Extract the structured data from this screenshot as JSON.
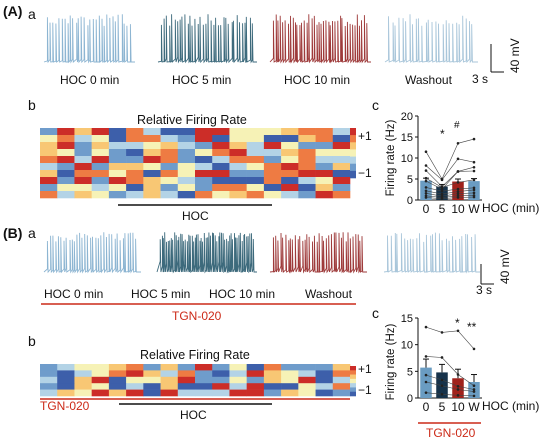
{
  "panels": {
    "A": {
      "label": "(A)",
      "a": {
        "label": "a",
        "trace_labels": [
          "HOC 0 min",
          "HOC 5 min",
          "HOC 10 min",
          "Washout"
        ],
        "trace_colors": [
          "#8db5d2",
          "#3d6a7c",
          "#9e3a3a",
          "#a9c6da"
        ],
        "scale_time": "3 s",
        "scale_voltage": "40 mV"
      },
      "b": {
        "label": "b",
        "heatmap_title": "Relative Firing Rate",
        "colorbar_ticks": [
          "+1",
          "−1"
        ],
        "treatment_label": "HOC"
      },
      "c": {
        "label": "c",
        "ylabel": "Firing rate (Hz)",
        "xlabel": "HOC (min)",
        "marks": [
          "*",
          "#"
        ]
      }
    },
    "B": {
      "label": "(B)",
      "a": {
        "label": "a",
        "trace_labels": [
          "HOC 0 min",
          "HOC 5 min",
          "HOC 10 min",
          "Washout"
        ],
        "trace_colors": [
          "#8db5d2",
          "#3d6a7c",
          "#9e3a3a",
          "#a9c6da"
        ],
        "condition_label": "TGN-020",
        "scale_time": "3 s",
        "scale_voltage": "40 mV"
      },
      "b": {
        "label": "b",
        "heatmap_title": "Relative Firing Rate",
        "colorbar_ticks": [
          "+1",
          "−1"
        ],
        "condition_label": "TGN-020",
        "treatment_label": "HOC"
      },
      "c": {
        "label": "c",
        "ylabel": "Firing rate (Hz)",
        "xlabel": "HOC (min)",
        "marks": [
          "*",
          "**"
        ],
        "condition_label": "TGN-020"
      }
    }
  },
  "colors": {
    "accent_red": "#cc2a18",
    "bar_0": "#6a9cc2",
    "bar_5": "#16324a",
    "bar_10": "#a0221c",
    "bar_w": "#6a9cc2"
  },
  "chart_data": [
    {
      "type": "bar",
      "panel": "A-c",
      "categories": [
        "0",
        "5",
        "10",
        "W"
      ],
      "values": [
        4.6,
        3.2,
        4.4,
        4.5
      ],
      "errors": [
        0.6,
        0.5,
        0.6,
        0.6
      ],
      "xlabel": "HOC (min)",
      "ylabel": "Firing rate (Hz)",
      "ylim": [
        0,
        20
      ],
      "yticks": [
        0,
        5,
        10,
        15,
        20
      ],
      "subjects": [
        [
          4.5,
          2.6,
          6.8,
          6.9
        ],
        [
          11.5,
          5.0,
          13.5,
          14.5
        ],
        [
          8.2,
          4.8,
          9.8,
          9.0
        ],
        [
          7.0,
          3.2,
          6.8,
          7.8
        ],
        [
          5.2,
          3.0,
          4.2,
          4.8
        ],
        [
          3.0,
          2.1,
          2.6,
          2.9
        ],
        [
          2.2,
          1.4,
          2.0,
          2.4
        ],
        [
          1.6,
          0.9,
          1.5,
          1.7
        ],
        [
          1.0,
          0.6,
          1.0,
          1.1
        ],
        [
          0.6,
          0.3,
          0.6,
          0.7
        ]
      ],
      "grid": false,
      "legend": "none"
    },
    {
      "type": "bar",
      "panel": "B-c",
      "categories": [
        "0",
        "5",
        "10",
        "W"
      ],
      "values": [
        5.7,
        4.8,
        3.7,
        3.0
      ],
      "errors": [
        1.6,
        1.5,
        1.7,
        1.4
      ],
      "xlabel": "HOC (min)",
      "ylabel": "Firing rate (Hz)",
      "ylim": [
        0,
        15
      ],
      "yticks": [
        0,
        5,
        10,
        15
      ],
      "subjects": [
        [
          13.3,
          12.3,
          12.6,
          9.2
        ],
        [
          7.8,
          7.6,
          4.4,
          2.3
        ],
        [
          4.3,
          3.4,
          2.2,
          1.6
        ],
        [
          3.0,
          2.3,
          1.6,
          1.2
        ],
        [
          1.0,
          0.7,
          0.5,
          0.4
        ]
      ],
      "grid": false,
      "legend": "none"
    }
  ]
}
